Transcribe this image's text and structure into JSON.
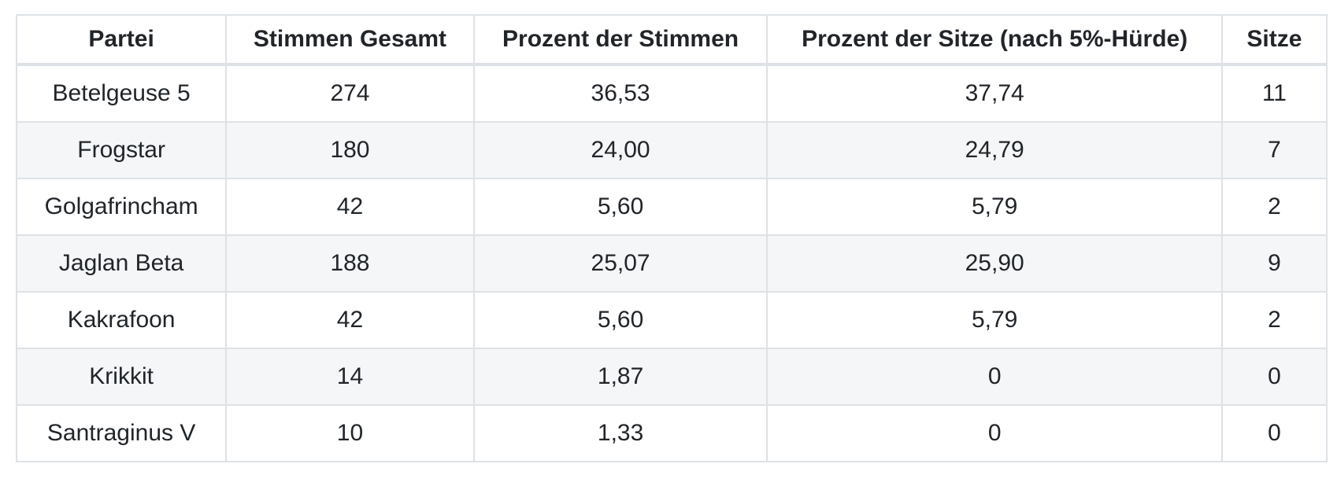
{
  "table": {
    "columns": [
      "Partei",
      "Stimmen Gesamt",
      "Prozent der Stimmen",
      "Prozent der Sitze (nach 5%-Hürde)",
      "Sitze"
    ],
    "rows": [
      [
        "Betelgeuse 5",
        "274",
        "36,53",
        "37,74",
        "11"
      ],
      [
        "Frogstar",
        "180",
        "24,00",
        "24,79",
        "7"
      ],
      [
        "Golgafrincham",
        "42",
        "5,60",
        "5,79",
        "2"
      ],
      [
        "Jaglan Beta",
        "188",
        "25,07",
        "25,90",
        "9"
      ],
      [
        "Kakrafoon",
        "42",
        "5,60",
        "5,79",
        "2"
      ],
      [
        "Krikkit",
        "14",
        "1,87",
        "0",
        "0"
      ],
      [
        "Santraginus V",
        "10",
        "1,33",
        "0",
        "0"
      ]
    ]
  },
  "chart_data": {
    "type": "table",
    "title": "",
    "columns": [
      "Partei",
      "Stimmen Gesamt",
      "Prozent der Stimmen",
      "Prozent der Sitze (nach 5%-Hürde)",
      "Sitze"
    ],
    "parties": [
      "Betelgeuse 5",
      "Frogstar",
      "Golgafrincham",
      "Jaglan Beta",
      "Kakrafoon",
      "Krikkit",
      "Santraginus V"
    ],
    "stimmen_gesamt": [
      274,
      180,
      42,
      188,
      42,
      14,
      10
    ],
    "prozent_der_stimmen": [
      36.53,
      24.0,
      5.6,
      25.07,
      5.6,
      1.87,
      1.33
    ],
    "prozent_der_sitze_nach_huerde": [
      37.74,
      24.79,
      5.79,
      25.9,
      5.79,
      0,
      0
    ],
    "sitze": [
      11,
      7,
      2,
      9,
      2,
      0,
      0
    ],
    "decimal_separator": ",",
    "layout": "bordered table, all cells center-aligned, zebra striping on even rows"
  },
  "colors": {
    "text": "#212529",
    "border": "#dee2e6",
    "stripe_row_background": "#f4f6f8",
    "background": "#ffffff"
  }
}
